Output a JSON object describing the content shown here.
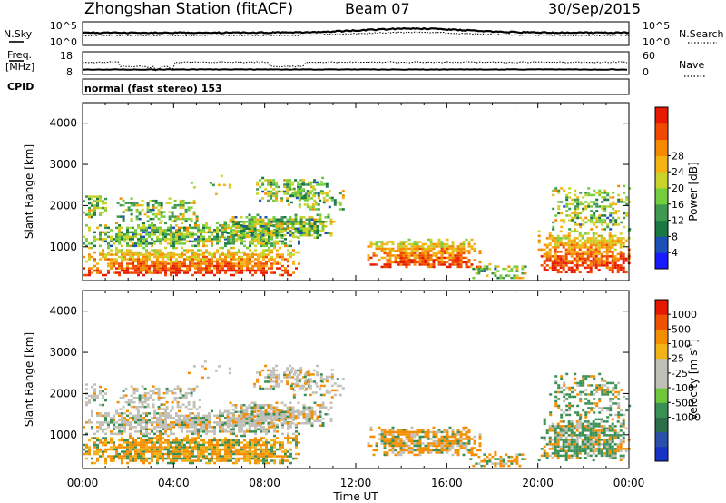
{
  "header": {
    "station": "Zhongshan Station (fitACF)",
    "beam": "Beam 07",
    "date": "30/Sep/2015"
  },
  "noise_panel": {
    "left_label": "N.Sky",
    "left_ticks": [
      "10^5",
      "10^0"
    ],
    "right_ticks": [
      "10^5",
      "10^0"
    ],
    "right_label": "N.Search"
  },
  "freq_panel": {
    "left_label_1": "Freq.",
    "left_label_2": "[MHz]",
    "left_ticks": [
      "18",
      "8"
    ],
    "right_ticks": [
      "60",
      "0"
    ],
    "right_label": "Nave"
  },
  "cpid": {
    "label": "CPID",
    "mode_text": "normal (fast stereo) 153"
  },
  "chart_data": [
    {
      "type": "heatmap",
      "name": "power",
      "ylabel": "Slant Range [km]",
      "yticks": [
        "1000",
        "2000",
        "3000",
        "4000"
      ],
      "ylim": [
        180,
        4500
      ],
      "xlim_hours": [
        0,
        24
      ],
      "colorbar_label": "Power [dB]",
      "colorbar_ticks": [
        "4",
        "8",
        "12",
        "16",
        "20",
        "24",
        "28"
      ],
      "colorbar_colors": [
        "#1a1aff",
        "#1c50b8",
        "#1a7844",
        "#3f9a4f",
        "#73cd3c",
        "#c8d42a",
        "#f3b312",
        "#f68a00",
        "#ef4a00",
        "#e61a00"
      ]
    },
    {
      "type": "heatmap",
      "name": "velocity",
      "ylabel": "Slant Range [km]",
      "yticks": [
        "1000",
        "2000",
        "3000",
        "4000"
      ],
      "ylim": [
        180,
        4500
      ],
      "xlim_hours": [
        0,
        24
      ],
      "xticks": [
        "00:00",
        "04:00",
        "08:00",
        "12:00",
        "16:00",
        "20:00",
        "00:00"
      ],
      "xlabel": "Time UT",
      "colorbar_label": "Velocity [m s",
      "colorbar_label_sup": "-1",
      "colorbar_label_end": "]",
      "colorbar_ticks": [
        "1000",
        "500",
        "100",
        "25",
        "-25",
        "-100",
        "-500",
        "-1000"
      ],
      "colorbar_colors": [
        "#1533c4",
        "#2a4fa8",
        "#2c6e4a",
        "#3a8f55",
        "#6ec63a",
        "#c0c0b8",
        "#c0c0b8",
        "#f1b315",
        "#f48e00",
        "#ee5200",
        "#e51800"
      ]
    }
  ]
}
